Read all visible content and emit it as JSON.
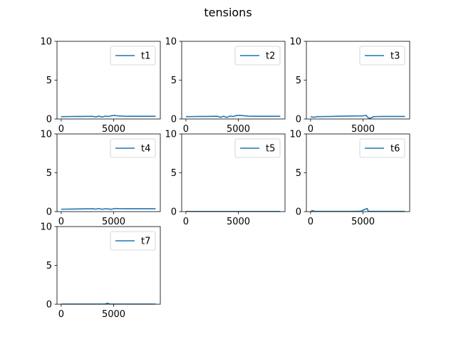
{
  "figure": {
    "title": "tensions",
    "line_color": "#1f77b4"
  },
  "chart_data": [
    {
      "type": "line",
      "name": "t1",
      "xlim": [
        -400,
        9450
      ],
      "ylim": [
        0,
        10
      ],
      "xticks": [
        0,
        5000
      ],
      "yticks": [
        0,
        5,
        10
      ],
      "legend": "top-right",
      "series": [
        {
          "name": "t1",
          "x": [
            0,
            500,
            1000,
            1500,
            2000,
            2500,
            3000,
            3300,
            3600,
            3900,
            4200,
            4500,
            4800,
            5100,
            5400,
            5700,
            6000,
            6500,
            7000,
            7500,
            8000,
            8500,
            9000
          ],
          "y": [
            0.3,
            0.31,
            0.32,
            0.33,
            0.33,
            0.34,
            0.34,
            0.27,
            0.36,
            0.25,
            0.38,
            0.32,
            0.42,
            0.45,
            0.4,
            0.38,
            0.36,
            0.35,
            0.35,
            0.35,
            0.35,
            0.35,
            0.35
          ]
        }
      ]
    },
    {
      "type": "line",
      "name": "t2",
      "xlim": [
        -400,
        9450
      ],
      "ylim": [
        0,
        10
      ],
      "xticks": [
        0,
        5000
      ],
      "yticks": [
        0,
        5,
        10
      ],
      "legend": "top-right",
      "series": [
        {
          "name": "t2",
          "x": [
            0,
            500,
            1000,
            1500,
            2000,
            2500,
            3000,
            3300,
            3600,
            3900,
            4200,
            4500,
            4800,
            5100,
            5400,
            5700,
            6000,
            6500,
            7000,
            7500,
            8000,
            8500,
            9000
          ],
          "y": [
            0.3,
            0.31,
            0.32,
            0.33,
            0.33,
            0.34,
            0.35,
            0.22,
            0.36,
            0.2,
            0.38,
            0.32,
            0.44,
            0.48,
            0.43,
            0.4,
            0.36,
            0.35,
            0.35,
            0.35,
            0.35,
            0.35,
            0.35
          ]
        }
      ]
    },
    {
      "type": "line",
      "name": "t3",
      "xlim": [
        -400,
        9450
      ],
      "ylim": [
        0,
        10
      ],
      "xticks": [
        0,
        5000
      ],
      "yticks": [
        0,
        5,
        10
      ],
      "legend": "top-right",
      "series": [
        {
          "name": "t3",
          "x": [
            0,
            300,
            600,
            1000,
            1500,
            2000,
            2500,
            3000,
            3500,
            4000,
            4500,
            5000,
            5300,
            5500,
            5700,
            6000,
            6500,
            7000,
            7500,
            8000,
            8500,
            9000
          ],
          "y": [
            0.3,
            0.22,
            0.3,
            0.31,
            0.32,
            0.33,
            0.35,
            0.36,
            0.37,
            0.38,
            0.39,
            0.4,
            0.45,
            0.15,
            0.1,
            0.3,
            0.32,
            0.33,
            0.33,
            0.33,
            0.33,
            0.33
          ]
        }
      ]
    },
    {
      "type": "line",
      "name": "t4",
      "xlim": [
        -400,
        9450
      ],
      "ylim": [
        0,
        10
      ],
      "xticks": [
        0,
        5000
      ],
      "yticks": [
        0,
        5,
        10
      ],
      "legend": "top-right",
      "series": [
        {
          "name": "t4",
          "x": [
            0,
            500,
            1000,
            1500,
            2000,
            2500,
            3000,
            3300,
            3600,
            3900,
            4200,
            4500,
            4800,
            5100,
            5500,
            6000,
            6500,
            7000,
            7500,
            8000,
            8500,
            9000
          ],
          "y": [
            0.3,
            0.32,
            0.33,
            0.34,
            0.35,
            0.36,
            0.37,
            0.32,
            0.4,
            0.3,
            0.38,
            0.34,
            0.3,
            0.4,
            0.38,
            0.37,
            0.37,
            0.37,
            0.37,
            0.37,
            0.37,
            0.37
          ]
        }
      ]
    },
    {
      "type": "line",
      "name": "t5",
      "xlim": [
        -400,
        9450
      ],
      "ylim": [
        0,
        10
      ],
      "xticks": [
        0,
        5000
      ],
      "yticks": [
        0,
        5,
        10
      ],
      "legend": "top-right",
      "series": [
        {
          "name": "t5",
          "x": [
            0,
            1000,
            2000,
            3000,
            4000,
            5000,
            6000,
            7000,
            8000,
            9000
          ],
          "y": [
            0.02,
            0.02,
            0.02,
            0.02,
            0.02,
            0.02,
            0.02,
            0.02,
            0.02,
            0.02
          ]
        }
      ]
    },
    {
      "type": "line",
      "name": "t6",
      "xlim": [
        -400,
        9450
      ],
      "ylim": [
        0,
        10
      ],
      "xticks": [
        0,
        5000
      ],
      "yticks": [
        0,
        5,
        10
      ],
      "legend": "top-right",
      "series": [
        {
          "name": "t6",
          "x": [
            0,
            200,
            400,
            1000,
            2000,
            3000,
            4000,
            4800,
            5000,
            5200,
            5400,
            5500,
            5600,
            6000,
            7000,
            8000,
            9000
          ],
          "y": [
            0.03,
            0.12,
            0.03,
            0.03,
            0.03,
            0.03,
            0.03,
            0.05,
            0.2,
            0.3,
            0.4,
            0.05,
            0.03,
            0.03,
            0.03,
            0.03,
            0.03
          ]
        }
      ]
    },
    {
      "type": "line",
      "name": "t7",
      "xlim": [
        -400,
        9450
      ],
      "ylim": [
        0,
        10
      ],
      "xticks": [
        0,
        5000
      ],
      "yticks": [
        0,
        5,
        10
      ],
      "legend": "top-right",
      "series": [
        {
          "name": "t7",
          "x": [
            0,
            1000,
            2000,
            3000,
            4000,
            4300,
            4400,
            4500,
            4700,
            5000,
            6000,
            7000,
            8000,
            9000
          ],
          "y": [
            0.02,
            0.02,
            0.02,
            0.02,
            0.02,
            0.05,
            0.15,
            0.08,
            0.02,
            0.02,
            0.02,
            0.02,
            0.02,
            0.02
          ]
        }
      ]
    }
  ]
}
